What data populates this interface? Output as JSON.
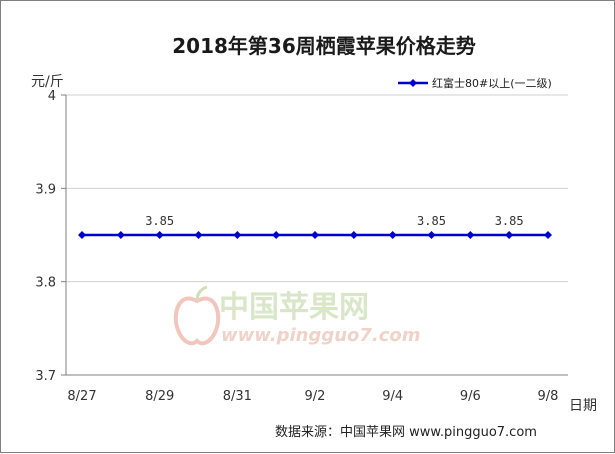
{
  "chart_data": {
    "type": "line",
    "title": "2018年第36周栖霞苹果价格走势",
    "ylabel": "元/斤",
    "xlabel": "日期",
    "ylim": [
      3.7,
      4
    ],
    "yticks": [
      "4",
      "3.9",
      "3.8",
      "3.7"
    ],
    "xtick_labels": [
      "8/27",
      "8/29",
      "8/31",
      "9/2",
      "9/4",
      "9/6",
      "9/8"
    ],
    "x": [
      "8/27",
      "8/28",
      "8/29",
      "8/30",
      "8/31",
      "9/1",
      "9/2",
      "9/3",
      "9/4",
      "9/5",
      "9/6",
      "9/7",
      "9/8"
    ],
    "series": [
      {
        "name": "红富士80#以上(一二级)",
        "color": "#0000cc",
        "values": [
          3.85,
          3.85,
          3.85,
          3.85,
          3.85,
          3.85,
          3.85,
          3.85,
          3.85,
          3.85,
          3.85,
          3.85,
          3.85
        ]
      }
    ],
    "data_labels": [
      {
        "x": "8/29",
        "text": "3.85"
      },
      {
        "x": "9/5",
        "text": "3.85"
      },
      {
        "x": "9/7",
        "text": "3.85"
      }
    ],
    "grid": "horizontal",
    "legend": "top-right"
  },
  "watermark": {
    "cn": "中国苹果网",
    "en": "www.pingguo7.com"
  },
  "source": "数据来源：中国苹果网 www.pingguo7.com"
}
